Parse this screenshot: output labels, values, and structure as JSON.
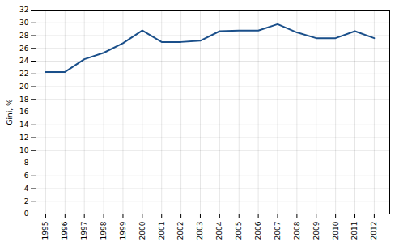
{
  "chart_data": {
    "type": "line",
    "x": [
      1995,
      1996,
      1997,
      1998,
      1999,
      2000,
      2001,
      2002,
      2003,
      2004,
      2005,
      2006,
      2007,
      2008,
      2009,
      2010,
      2011,
      2012
    ],
    "values": [
      22.3,
      22.3,
      24.3,
      25.3,
      26.8,
      28.8,
      27.0,
      27.0,
      27.2,
      28.7,
      28.8,
      28.8,
      29.8,
      28.5,
      27.6,
      27.6,
      28.7,
      27.6
    ],
    "color": "#1a4f8a",
    "ylabel": "Gini, %",
    "xlim": [
      1994.5,
      2012.8
    ],
    "xticks": [
      1995,
      1996,
      1997,
      1998,
      1999,
      2000,
      2001,
      2002,
      2003,
      2004,
      2005,
      2006,
      2007,
      2008,
      2009,
      2010,
      2011,
      2012
    ],
    "ylim": [
      0,
      32
    ],
    "yticks": [
      0,
      2,
      4,
      6,
      8,
      10,
      12,
      14,
      16,
      18,
      20,
      22,
      24,
      26,
      28,
      30,
      32
    ],
    "grid": true
  }
}
